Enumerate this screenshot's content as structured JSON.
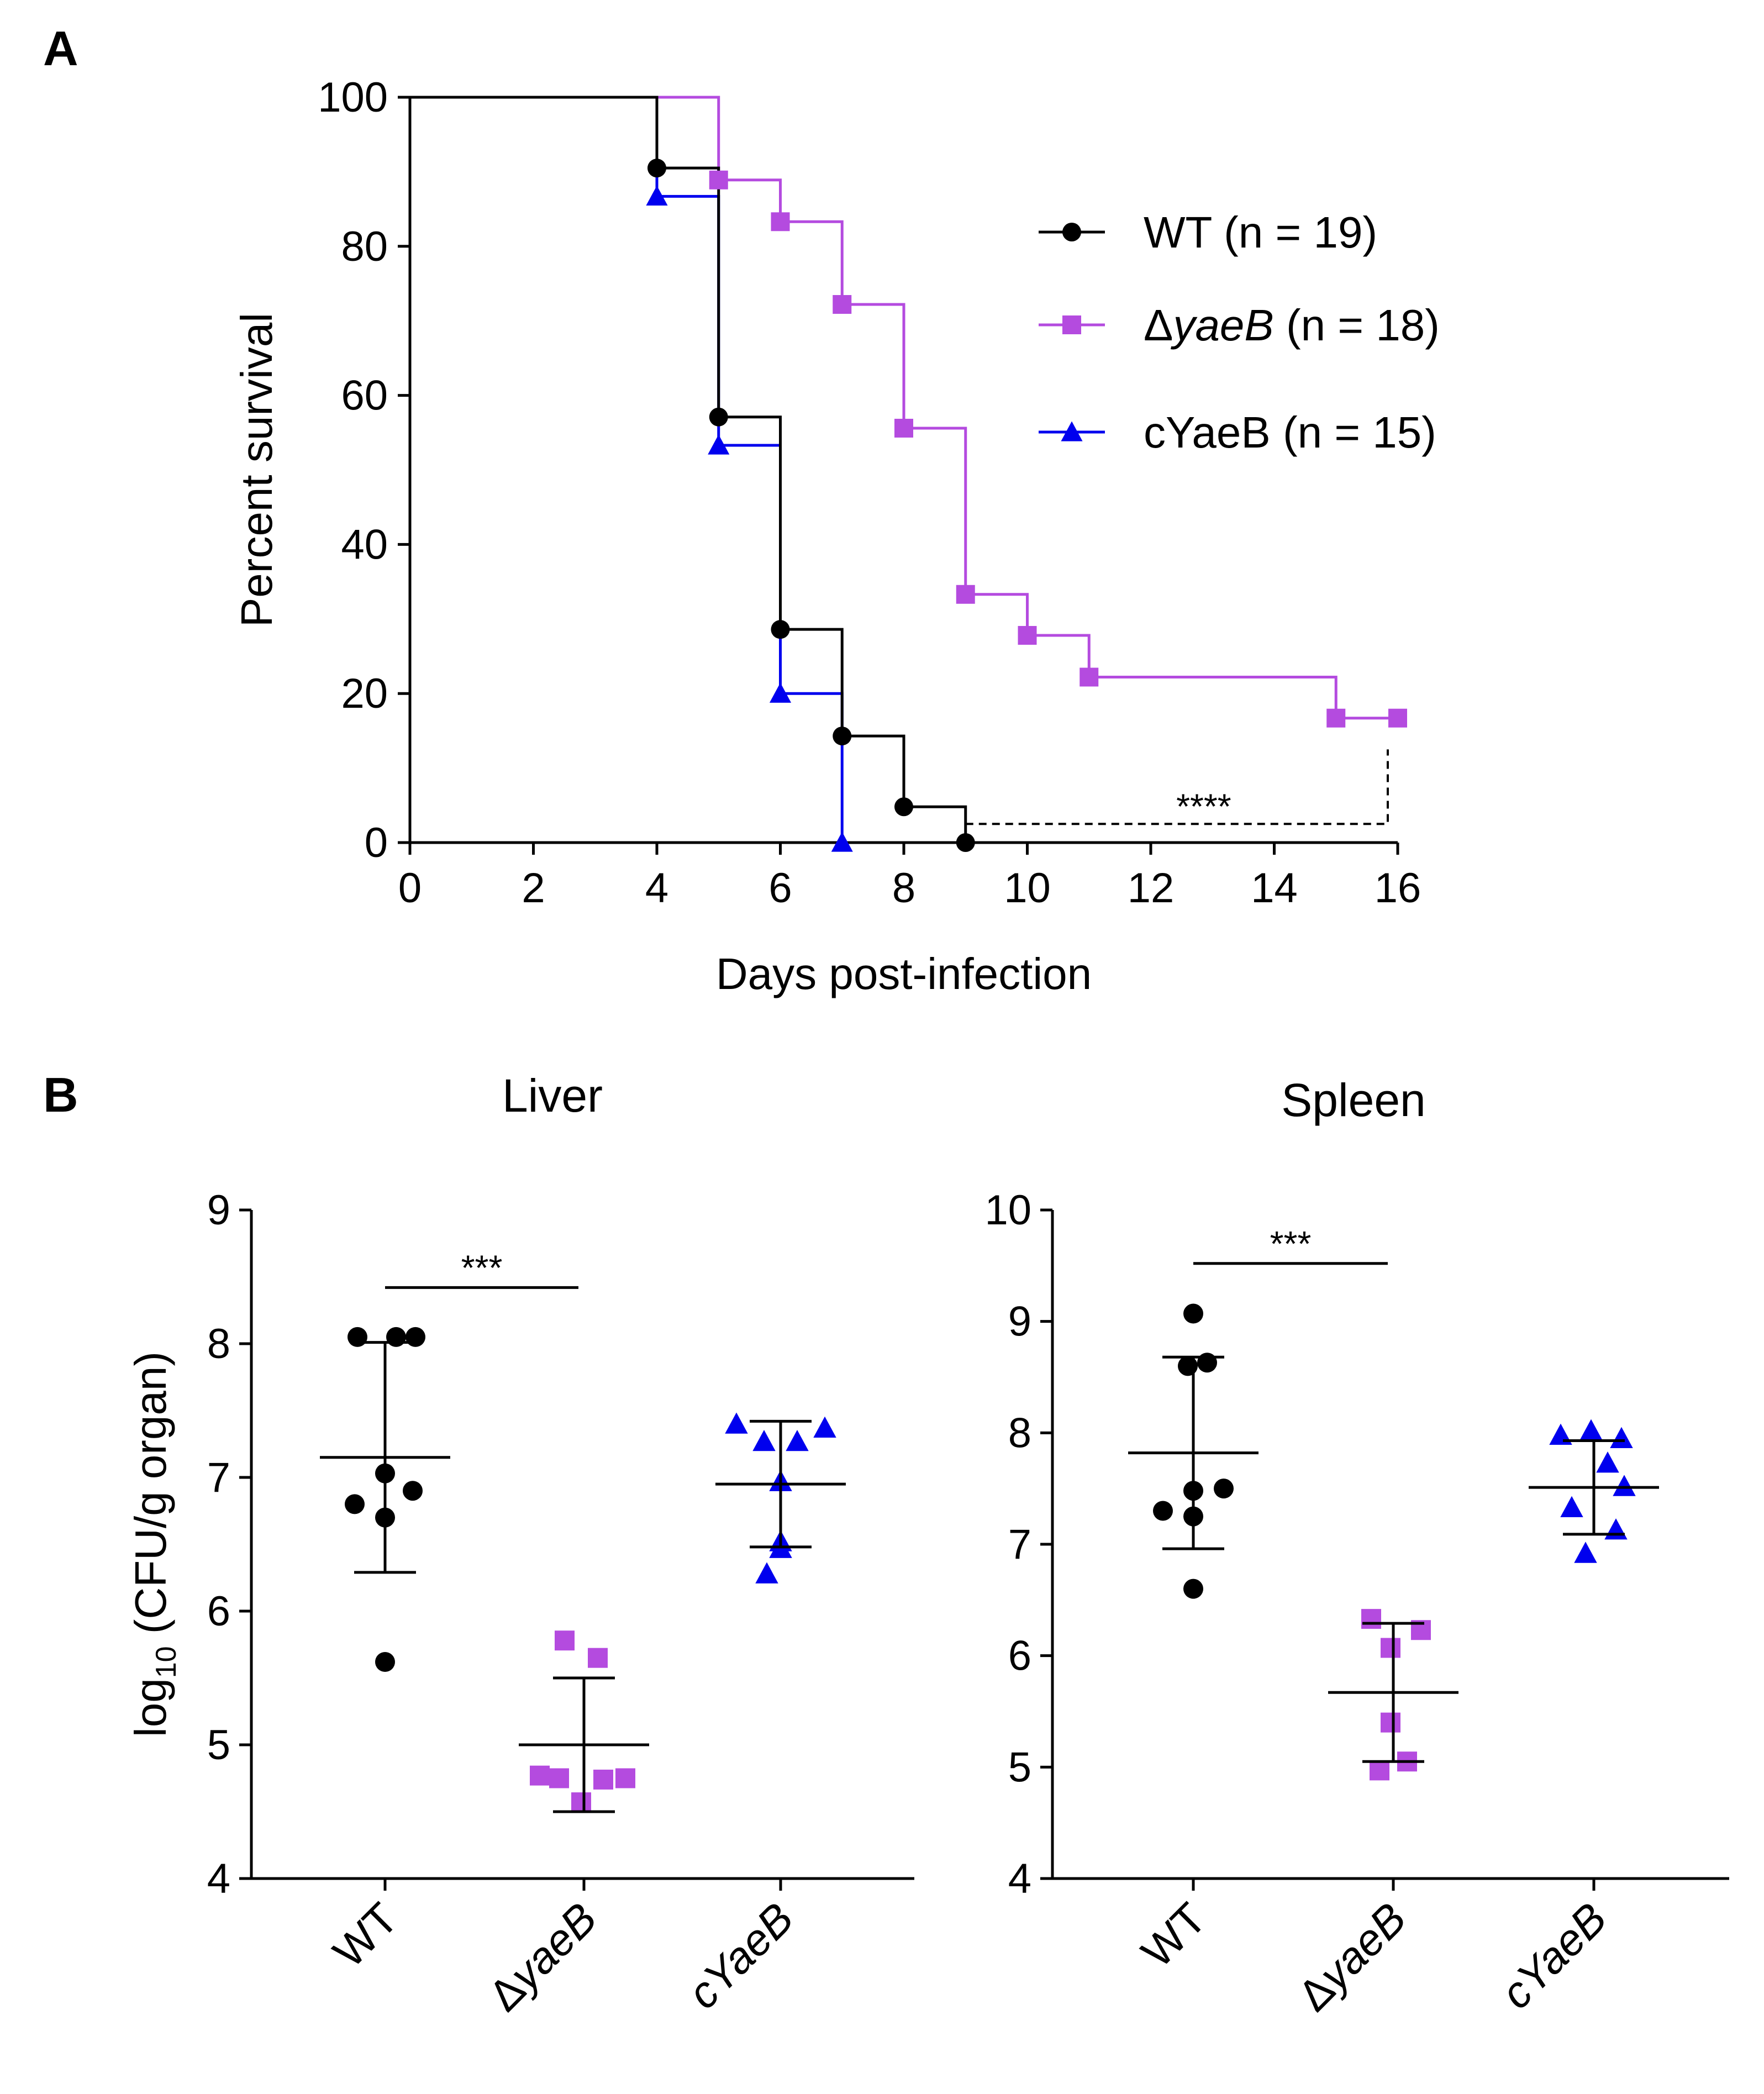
{
  "figure": {
    "panel_a_label": "A",
    "panel_b_label": "B"
  },
  "colors": {
    "wt": "#000000",
    "dyaeB": "#B44BDF",
    "cYaeB": "#0000EE"
  },
  "chart_data": [
    {
      "type": "line",
      "subtype": "kaplan-meier-survival",
      "panel": "A",
      "title": "",
      "xlabel": "Days post-infection",
      "ylabel": "Percent survival",
      "xlim": [
        0,
        16
      ],
      "ylim": [
        0,
        100
      ],
      "xticks": [
        0,
        2,
        4,
        6,
        8,
        10,
        12,
        14,
        16
      ],
      "yticks": [
        0,
        20,
        40,
        60,
        80,
        100
      ],
      "series": [
        {
          "name": "WT (n = 19)",
          "legend_prefix": "WT",
          "legend_italic": "",
          "legend_suffix": " (n = 19)",
          "marker": "circle",
          "color": "#000000",
          "steps": [
            [
              0,
              100
            ],
            [
              4,
              90.5
            ],
            [
              5,
              57.1
            ],
            [
              6,
              28.6
            ],
            [
              7,
              14.3
            ],
            [
              8,
              4.8
            ],
            [
              9,
              0
            ]
          ],
          "markers": [
            [
              4,
              90.5
            ],
            [
              5,
              57.1
            ],
            [
              6,
              28.6
            ],
            [
              7,
              14.3
            ],
            [
              8,
              4.8
            ],
            [
              9,
              0
            ]
          ]
        },
        {
          "name": "ΔyaeB (n = 18)",
          "legend_prefix": "Δ",
          "legend_italic": "yaeB",
          "legend_suffix": " (n = 18)",
          "marker": "square",
          "color": "#B44BDF",
          "steps": [
            [
              0,
              100
            ],
            [
              5,
              88.9
            ],
            [
              6,
              83.3
            ],
            [
              7,
              72.2
            ],
            [
              8,
              55.6
            ],
            [
              9,
              33.3
            ],
            [
              10,
              27.8
            ],
            [
              11,
              22.2
            ],
            [
              15,
              16.7
            ],
            [
              16,
              16.7
            ]
          ],
          "markers": [
            [
              5,
              88.9
            ],
            [
              6,
              83.3
            ],
            [
              7,
              72.2
            ],
            [
              8,
              55.6
            ],
            [
              9,
              33.3
            ],
            [
              10,
              27.8
            ],
            [
              11,
              22.2
            ],
            [
              15,
              16.7
            ],
            [
              16,
              16.7
            ]
          ]
        },
        {
          "name": "cYaeB (n = 15)",
          "legend_prefix": "cYaeB",
          "legend_italic": "",
          "legend_suffix": " (n = 15)",
          "marker": "triangle",
          "color": "#0000EE",
          "steps": [
            [
              0,
              100
            ],
            [
              4,
              86.7
            ],
            [
              5,
              53.3
            ],
            [
              6,
              20
            ],
            [
              7,
              0
            ]
          ],
          "markers": [
            [
              4,
              86.7
            ],
            [
              5,
              53.3
            ],
            [
              6,
              20
            ],
            [
              7,
              0
            ]
          ]
        }
      ],
      "annotations": [
        {
          "text": "****",
          "from_x": 9,
          "to_x": 16,
          "y": 2.5,
          "style": "dashed",
          "note": "WT vs ΔyaeB"
        }
      ]
    },
    {
      "type": "scatter",
      "subtype": "dot-plot-mean-sd",
      "panel": "B",
      "title": "Liver",
      "ylabel_main": "log",
      "ylabel_sub": "10",
      "ylabel_rest": " (CFU/g organ)",
      "ylim": [
        4,
        9
      ],
      "yticks": [
        4,
        5,
        6,
        7,
        8,
        9
      ],
      "categories": [
        {
          "label": "WT",
          "prefix": "",
          "italic": "",
          "plain": "WT"
        },
        {
          "label": "ΔyaeB",
          "prefix": "Δ",
          "italic": "yaeB",
          "plain": ""
        },
        {
          "label": "cYaeB",
          "prefix": "",
          "italic": "cYaeB",
          "plain": ""
        }
      ],
      "series": [
        {
          "name": "WT",
          "marker": "circle",
          "color": "#000000",
          "points": [
            8.05,
            8.05,
            8.05,
            7.03,
            6.9,
            6.8,
            6.7,
            5.62
          ],
          "mean": 7.15,
          "sd": 0.86
        },
        {
          "name": "ΔyaeB",
          "marker": "square",
          "color": "#B44BDF",
          "points": [
            5.78,
            5.65,
            4.77,
            4.75,
            4.75,
            4.74,
            4.57
          ],
          "mean": 5.0,
          "sd": 0.5
        },
        {
          "name": "cYaeB",
          "marker": "triangle",
          "color": "#0000EE",
          "points": [
            7.4,
            7.37,
            7.27,
            7.27,
            6.97,
            6.52,
            6.47,
            6.28
          ],
          "mean": 6.95,
          "sd": 0.47
        }
      ],
      "significance": [
        {
          "text": "***",
          "from": 0,
          "to": 1,
          "y": 8.42
        }
      ]
    },
    {
      "type": "scatter",
      "subtype": "dot-plot-mean-sd",
      "panel": "B",
      "title": "Spleen",
      "ylim": [
        4,
        10
      ],
      "yticks": [
        4,
        5,
        6,
        7,
        8,
        9,
        10
      ],
      "categories": [
        {
          "label": "WT",
          "prefix": "",
          "italic": "",
          "plain": "WT"
        },
        {
          "label": "ΔyaeB",
          "prefix": "Δ",
          "italic": "yaeB",
          "plain": ""
        },
        {
          "label": "cYaeB",
          "prefix": "",
          "italic": "cYaeB",
          "plain": ""
        }
      ],
      "series": [
        {
          "name": "WT",
          "marker": "circle",
          "color": "#000000",
          "points": [
            9.07,
            8.63,
            8.6,
            7.5,
            7.48,
            7.3,
            7.25,
            6.6
          ],
          "mean": 7.82,
          "sd": 0.86
        },
        {
          "name": "ΔyaeB",
          "marker": "square",
          "color": "#B44BDF",
          "points": [
            6.33,
            6.23,
            6.07,
            5.4,
            5.05,
            4.97
          ],
          "mean": 5.67,
          "sd": 0.62
        },
        {
          "name": "cYaeB",
          "marker": "triangle",
          "color": "#0000EE",
          "points": [
            8.02,
            7.98,
            7.95,
            7.73,
            7.52,
            7.33,
            7.13,
            6.92
          ],
          "mean": 7.51,
          "sd": 0.42
        }
      ],
      "significance": [
        {
          "text": "***",
          "from": 0,
          "to": 1,
          "y": 9.52
        }
      ]
    }
  ]
}
